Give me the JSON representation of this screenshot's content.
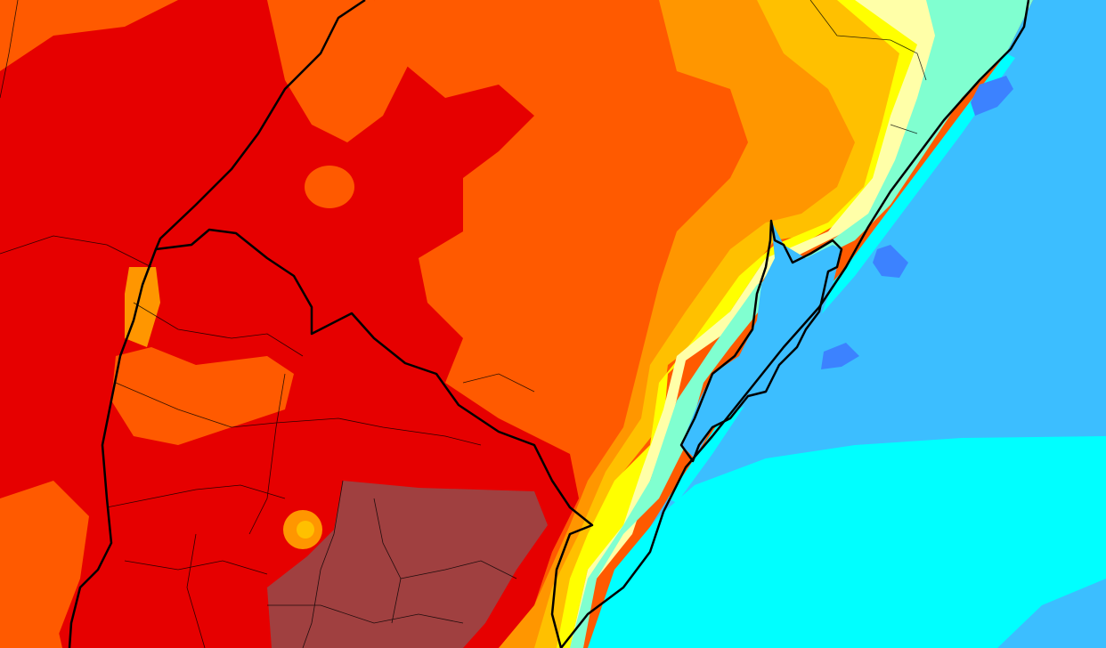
{
  "map": {
    "colors": {
      "orange": "#ff5a00",
      "red": "#e60000",
      "dark_red": "#a04040",
      "light_orange": "#ff9600",
      "amber": "#ffc000",
      "yellow": "#ffff00",
      "pale_yellow": "#ffffa8",
      "aquamarine": "#80ffd0",
      "cyan": "#00ffff",
      "sky_blue": "#3cbeff",
      "blue": "#3c82ff",
      "border": "#000000"
    }
  }
}
